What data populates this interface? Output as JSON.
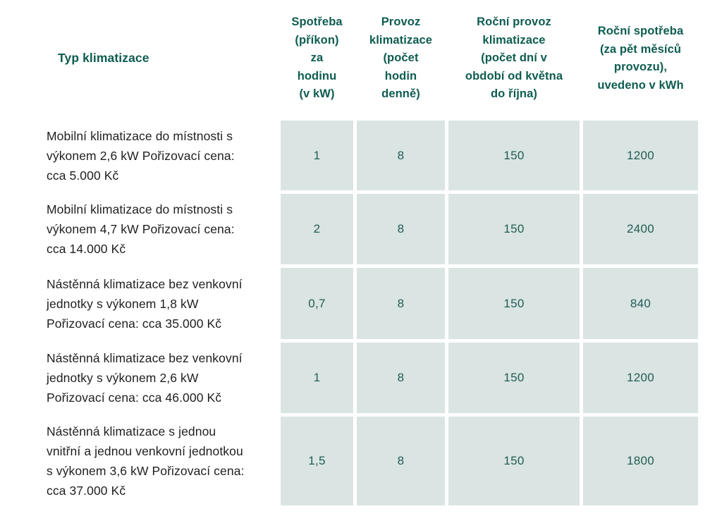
{
  "colors": {
    "page_bg": "#ffffff",
    "cell_bg": "#dae4e3",
    "header_text": "#0d5c50",
    "value_text": "#1f5c52",
    "label_text": "#1f1f1f"
  },
  "table": {
    "headers": [
      "Typ klimatizace",
      "Spotřeba\n(příkon)\nza\nhodinu\n(v kW)",
      "Provoz\nklimatizace\n(počet\nhodin\ndenně)",
      "Roční provoz\nklimatizace\n(počet dní v\nobdobí od května\ndo října)",
      "Roční spotřeba\n(za pět měsíců\nprovozu),\nuvedeno v kWh"
    ],
    "rows": [
      {
        "label": "Mobilní klimatizace do místnosti s\nvýkonem 2,6 kW Pořizovací cena:\ncca 5.000 Kč",
        "values": [
          "1",
          "8",
          "150",
          "1200"
        ]
      },
      {
        "label": "Mobilní klimatizace do místnosti s\nvýkonem 4,7 kW Pořizovací cena:\ncca 14.000 Kč",
        "values": [
          "2",
          "8",
          "150",
          "2400"
        ]
      },
      {
        "label": "Nástěnná klimatizace bez venkovní\njednotky s výkonem 1,8 kW\nPořizovací cena: cca 35.000 Kč",
        "values": [
          "0,7",
          "8",
          "150",
          "840"
        ]
      },
      {
        "label": "Nástěnná klimatizace bez venkovní\njednotky s výkonem 2,6 kW\nPořizovací cena: cca 46.000 Kč",
        "values": [
          "1",
          "8",
          "150",
          "1200"
        ]
      },
      {
        "label": "Nástěnná klimatizace s jednou\nvnitřní a jednou venkovní jednotkou\ns výkonem 3,6 kW Pořizovací cena:\ncca 37.000 Kč",
        "values": [
          "1,5",
          "8",
          "150",
          "1800"
        ]
      }
    ]
  },
  "chart_data": {
    "type": "table",
    "columns": [
      "Typ klimatizace",
      "Spotřeba (příkon) za hodinu (v kW)",
      "Provoz klimatizace (počet hodin denně)",
      "Roční provoz klimatizace (počet dní v období od května do října)",
      "Roční spotřeba (za pět měsíců provozu), uvedeno v kWh"
    ],
    "rows": [
      [
        "Mobilní klimatizace do místnosti s výkonem 2,6 kW Pořizovací cena: cca 5.000 Kč",
        1,
        8,
        150,
        1200
      ],
      [
        "Mobilní klimatizace do místnosti s výkonem 4,7 kW Pořizovací cena: cca 14.000 Kč",
        2,
        8,
        150,
        2400
      ],
      [
        "Nástěnná klimatizace bez venkovní jednotky s výkonem 1,8 kW Pořizovací cena: cca 35.000 Kč",
        0.7,
        8,
        150,
        840
      ],
      [
        "Nástěnná klimatizace bez venkovní jednotky s výkonem 2,6 kW Pořizovací cena: cca 46.000 Kč",
        1,
        8,
        150,
        1200
      ],
      [
        "Nástěnná klimatizace s jednou vnitřní a jednou venkovní jednotkou s výkonem 3,6 kW Pořizovací cena: cca 37.000 Kč",
        1.5,
        8,
        150,
        1800
      ]
    ]
  }
}
